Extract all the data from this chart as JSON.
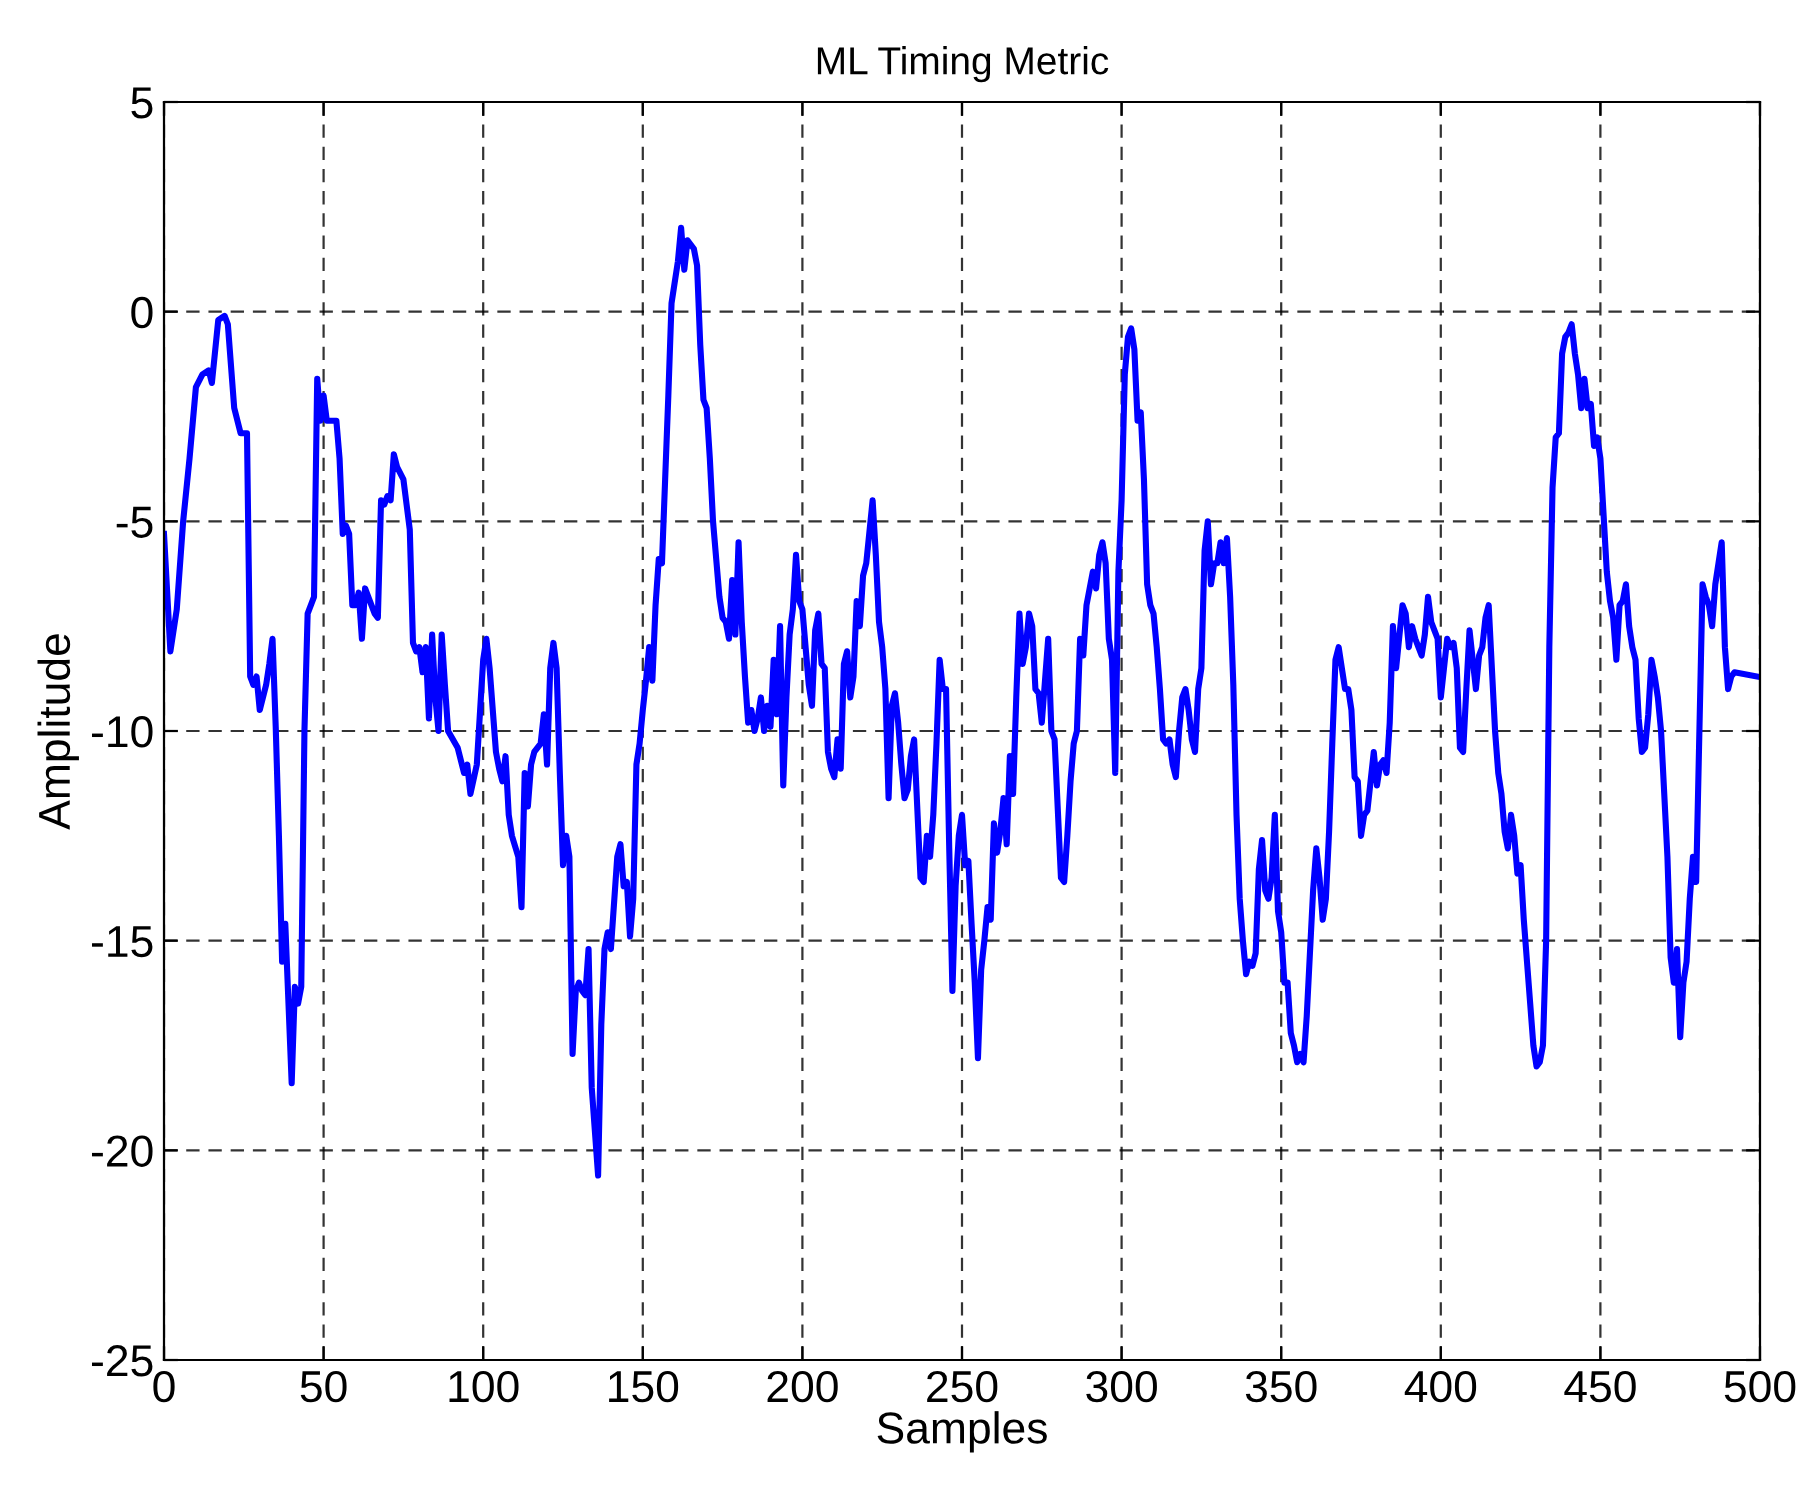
{
  "chart_data": {
    "type": "line",
    "title": "ML Timing Metric",
    "xlabel": "Samples",
    "ylabel": "Amplitude",
    "xlim": [
      0,
      500
    ],
    "xticks": [
      0,
      50,
      100,
      150,
      200,
      250,
      300,
      350,
      400,
      450,
      500
    ],
    "ylim": [
      -25,
      5
    ],
    "yticks": [
      -25,
      -20,
      -15,
      -10,
      -5,
      0,
      5
    ],
    "grid": true,
    "legend": false,
    "line_style": "solid",
    "marker": "none",
    "series": [
      {
        "color": "#0000ff",
        "x": [
          0,
          2,
          4,
          6,
          8,
          10,
          12,
          14,
          15,
          17,
          19,
          20,
          22,
          24,
          26,
          27,
          28,
          29,
          30,
          32,
          33,
          34,
          35,
          36,
          37,
          38,
          40,
          41,
          42,
          43,
          44,
          45,
          47,
          48,
          49,
          50,
          51,
          54,
          55,
          56,
          57,
          58,
          59,
          60,
          61,
          62,
          63,
          64,
          66,
          67,
          68,
          69,
          70,
          71,
          72,
          73,
          75,
          77,
          78,
          79,
          80,
          81,
          82,
          83,
          84,
          85,
          86,
          87,
          88,
          89,
          92,
          94,
          95,
          96,
          98,
          100,
          101,
          102,
          104,
          105,
          106,
          107,
          108,
          109,
          111,
          112,
          113,
          114,
          115,
          116,
          118,
          119,
          120,
          121,
          122,
          123,
          124,
          125,
          126,
          127,
          128,
          129,
          130,
          131,
          132,
          133,
          134,
          136,
          137,
          138,
          139,
          140,
          142,
          143,
          144,
          145,
          146,
          147,
          148,
          149,
          150,
          151,
          152,
          153,
          154,
          155,
          156,
          157,
          158,
          159,
          161,
          162,
          163,
          164,
          166,
          167,
          168,
          169,
          170,
          171,
          172,
          174,
          175,
          176,
          177,
          178,
          179,
          180,
          181,
          182,
          183,
          184,
          185,
          186,
          187,
          188,
          189,
          190,
          191,
          192,
          193,
          194,
          195,
          196,
          197,
          198,
          199,
          200,
          202,
          203,
          204,
          205,
          206,
          207,
          208,
          209,
          210,
          211,
          212,
          213,
          214,
          215,
          216,
          217,
          218,
          219,
          220,
          222,
          223,
          224,
          225,
          226,
          227,
          228,
          229,
          230,
          231,
          232,
          233,
          234,
          235,
          237,
          238,
          239,
          240,
          241,
          242,
          243,
          244,
          245,
          246,
          247,
          248,
          249,
          250,
          251,
          252,
          253,
          254,
          255,
          256,
          257,
          258,
          259,
          260,
          261,
          262,
          263,
          264,
          265,
          266,
          267,
          268,
          269,
          270,
          271,
          272,
          273,
          274,
          275,
          276,
          277,
          278,
          279,
          281,
          282,
          283,
          284,
          285,
          286,
          287,
          288,
          289,
          290,
          291,
          292,
          293,
          294,
          295,
          296,
          297,
          298,
          299,
          300,
          301,
          302,
          303,
          304,
          305,
          306,
          307,
          308,
          309,
          310,
          311,
          312,
          313,
          314,
          315,
          316,
          317,
          318,
          319,
          320,
          321,
          322,
          323,
          324,
          325,
          326,
          327,
          328,
          329,
          330,
          331,
          332,
          333,
          334,
          335,
          336,
          337,
          338,
          339,
          340,
          341,
          342,
          343,
          344,
          345,
          346,
          347,
          348,
          349,
          350,
          351,
          352,
          353,
          354,
          355,
          356,
          357,
          358,
          360,
          361,
          362,
          363,
          364,
          365,
          366,
          367,
          368,
          369,
          370,
          371,
          372,
          373,
          374,
          375,
          376,
          377,
          378,
          379,
          380,
          381,
          382,
          383,
          384,
          385,
          386,
          388,
          389,
          390,
          391,
          392,
          393,
          394,
          395,
          396,
          397,
          398,
          399,
          400,
          401,
          402,
          403,
          404,
          405,
          406,
          407,
          408,
          409,
          410,
          411,
          412,
          413,
          414,
          415,
          416,
          417,
          418,
          419,
          420,
          421,
          422,
          423,
          424,
          425,
          426,
          427,
          428,
          429,
          430,
          431,
          432,
          433,
          434,
          435,
          436,
          437,
          438,
          439,
          440,
          441,
          442,
          443,
          444,
          445,
          446,
          447,
          448,
          449,
          450,
          452,
          453,
          454,
          455,
          456,
          457,
          458,
          459,
          460,
          461,
          462,
          463,
          464,
          465,
          466,
          467,
          468,
          469,
          470,
          471,
          472,
          473,
          474,
          475,
          476,
          477,
          478,
          479,
          480,
          482,
          483,
          484,
          485,
          486,
          487,
          488,
          489,
          490,
          491,
          492,
          499
        ],
        "values": [
          -5.3,
          -8.1,
          -7.1,
          -5,
          -3.5,
          -1.8,
          -1.5,
          -1.4,
          -1.7,
          -0.2,
          -0.1,
          -0.3,
          -2.3,
          -2.9,
          -2.9,
          -8.7,
          -8.9,
          -8.7,
          -9.5,
          -8.9,
          -8.4,
          -7.8,
          -9.9,
          -12.5,
          -15.5,
          -14.6,
          -18.4,
          -16.1,
          -16.5,
          -16.1,
          -10,
          -7.2,
          -6.8,
          -1.6,
          -2.6,
          -2.0,
          -2.6,
          -2.6,
          -3.5,
          -5.3,
          -5.1,
          -5.3,
          -7.0,
          -7.0,
          -6.7,
          -7.8,
          -6.6,
          -6.8,
          -7.2,
          -7.3,
          -4.5,
          -4.6,
          -4.4,
          -4.5,
          -3.4,
          -3.7,
          -4.0,
          -5.2,
          -7.9,
          -8.1,
          -8.0,
          -8.6,
          -8.0,
          -9.7,
          -7.7,
          -9.2,
          -10.0,
          -7.7,
          -8.9,
          -10.0,
          -10.4,
          -11.0,
          -10.8,
          -11.5,
          -10.8,
          -8.3,
          -7.8,
          -8.5,
          -10.5,
          -10.9,
          -11.2,
          -10.6,
          -12.0,
          -12.5,
          -13.0,
          -14.2,
          -11.0,
          -11.8,
          -10.8,
          -10.5,
          -10.3,
          -9.6,
          -10.8,
          -8.5,
          -7.9,
          -8.5,
          -11.0,
          -13.2,
          -12.5,
          -13.0,
          -17.7,
          -16.2,
          -16.0,
          -16.2,
          -16.3,
          -15.2,
          -18.5,
          -20.6,
          -17.0,
          -15.2,
          -14.8,
          -15.2,
          -13.0,
          -12.7,
          -13.7,
          -13.6,
          -14.9,
          -14.0,
          -10.8,
          -10.3,
          -9.5,
          -8.8,
          -8.0,
          -8.8,
          -7.0,
          -5.9,
          -6.0,
          -4.0,
          -2.0,
          0.2,
          1.2,
          2.0,
          1.0,
          1.7,
          1.5,
          1.1,
          -0.8,
          -2.1,
          -2.3,
          -3.5,
          -5.0,
          -6.8,
          -7.3,
          -7.4,
          -7.8,
          -6.4,
          -7.7,
          -5.5,
          -7.4,
          -8.7,
          -9.8,
          -9.5,
          -10.0,
          -9.7,
          -9.2,
          -10.0,
          -9.4,
          -9.9,
          -8.3,
          -9.6,
          -7.5,
          -11.3,
          -9.2,
          -7.7,
          -7.1,
          -5.8,
          -6.9,
          -7.1,
          -8.9,
          -9.4,
          -7.6,
          -7.2,
          -8.4,
          -8.5,
          -10.5,
          -10.9,
          -11.1,
          -10.2,
          -10.9,
          -8.4,
          -8.1,
          -9.2,
          -8.7,
          -6.9,
          -7.5,
          -6.3,
          -6.0,
          -4.5,
          -5.8,
          -7.4,
          -8.0,
          -9.0,
          -11.6,
          -9.4,
          -9.1,
          -9.8,
          -10.8,
          -11.6,
          -11.4,
          -10.6,
          -10.2,
          -13.5,
          -13.6,
          -12.5,
          -13.0,
          -12.0,
          -10.3,
          -8.3,
          -9.0,
          -9.0,
          -12.8,
          -16.2,
          -13.7,
          -12.5,
          -12.0,
          -13.2,
          -13.1,
          -14.6,
          -16.0,
          -17.8,
          -15.7,
          -15.0,
          -14.2,
          -14.5,
          -12.2,
          -12.9,
          -12.4,
          -11.6,
          -12.7,
          -10.6,
          -11.5,
          -9.2,
          -7.2,
          -8.4,
          -8.0,
          -7.2,
          -7.5,
          -9.0,
          -9.1,
          -9.8,
          -8.8,
          -7.8,
          -10.0,
          -10.2,
          -13.5,
          -13.6,
          -12.5,
          -11.2,
          -10.3,
          -10.0,
          -7.8,
          -8.2,
          -7.0,
          -6.6,
          -6.2,
          -6.6,
          -5.8,
          -5.5,
          -6.0,
          -7.8,
          -8.3,
          -11.0,
          -6.2,
          -4.5,
          -1.5,
          -0.6,
          -0.4,
          -0.9,
          -2.6,
          -2.4,
          -4.0,
          -6.5,
          -7.0,
          -7.2,
          -8.0,
          -9.0,
          -10.2,
          -10.3,
          -10.2,
          -10.8,
          -11.1,
          -10.0,
          -9.2,
          -9.0,
          -9.5,
          -10.2,
          -10.5,
          -9.0,
          -8.5,
          -5.7,
          -5.0,
          -6.5,
          -6.0,
          -6.0,
          -5.5,
          -6.0,
          -5.4,
          -6.8,
          -8.9,
          -12.0,
          -14.0,
          -15.0,
          -15.8,
          -15.5,
          -15.6,
          -15.3,
          -13.3,
          -12.6,
          -13.8,
          -14.0,
          -13.5,
          -12.0,
          -14.3,
          -14.8,
          -16.0,
          -16.0,
          -17.2,
          -17.5,
          -17.9,
          -17.7,
          -17.9,
          -16.8,
          -13.8,
          -12.8,
          -13.5,
          -14.5,
          -14.0,
          -12.4,
          -10.3,
          -8.3,
          -8.0,
          -8.5,
          -9.0,
          -9.0,
          -9.5,
          -11.1,
          -11.2,
          -12.5,
          -12.0,
          -11.9,
          -11.2,
          -10.5,
          -11.3,
          -10.8,
          -10.7,
          -11.0,
          -9.8,
          -7.5,
          -8.5,
          -7.0,
          -7.2,
          -8.0,
          -7.5,
          -7.8,
          -8.0,
          -8.2,
          -7.7,
          -6.8,
          -7.4,
          -7.6,
          -7.8,
          -9.2,
          -8.5,
          -7.8,
          -8.0,
          -7.9,
          -8.5,
          -10.4,
          -10.5,
          -9.0,
          -7.6,
          -8.3,
          -9.0,
          -8.2,
          -8.0,
          -7.3,
          -7.0,
          -8.5,
          -10.0,
          -11.0,
          -11.5,
          -12.4,
          -12.8,
          -12.0,
          -12.5,
          -13.4,
          -13.2,
          -14.5,
          -15.5,
          -16.5,
          -17.5,
          -18.0,
          -17.9,
          -17.5,
          -15.0,
          -8.0,
          -4.2,
          -3.0,
          -2.9,
          -1.0,
          -0.6,
          -0.5,
          -0.3,
          -1.0,
          -1.5,
          -2.3,
          -1.6,
          -2.3,
          -2.2,
          -3.2,
          -3.0,
          -3.5,
          -6.2,
          -6.9,
          -7.3,
          -8.3,
          -7.0,
          -6.9,
          -6.5,
          -7.5,
          -8.0,
          -8.3,
          -9.7,
          -10.5,
          -10.4,
          -9.6,
          -8.3,
          -8.7,
          -9.2,
          -10.0,
          -11.5,
          -13.0,
          -15.4,
          -16.0,
          -15.2,
          -17.3,
          -16.0,
          -15.5,
          -14.0,
          -13.0,
          -13.6,
          -6.5,
          -6.8,
          -7.0,
          -7.5,
          -6.5,
          -6.0,
          -5.5,
          -8.0,
          -9.0,
          -8.7,
          -8.6,
          -8.7
        ]
      }
    ]
  }
}
